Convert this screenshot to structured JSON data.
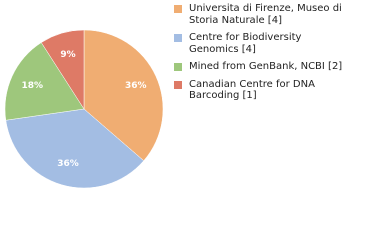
{
  "chart_data": {
    "type": "pie",
    "categories": [
      "Universita di Firenze, Museo di Storia Naturale [4]",
      "Centre for Biodiversity Genomics [4]",
      "Mined from GenBank, NCBI [2]",
      "Canadian Centre for DNA Barcoding [1]"
    ],
    "values": [
      36,
      36,
      18,
      9
    ],
    "value_labels": [
      "36%",
      "36%",
      "18%",
      "9%"
    ],
    "colors": [
      "#f0ad72",
      "#a3bde3",
      "#9ec77c",
      "#de7a66"
    ],
    "legend": "right"
  }
}
